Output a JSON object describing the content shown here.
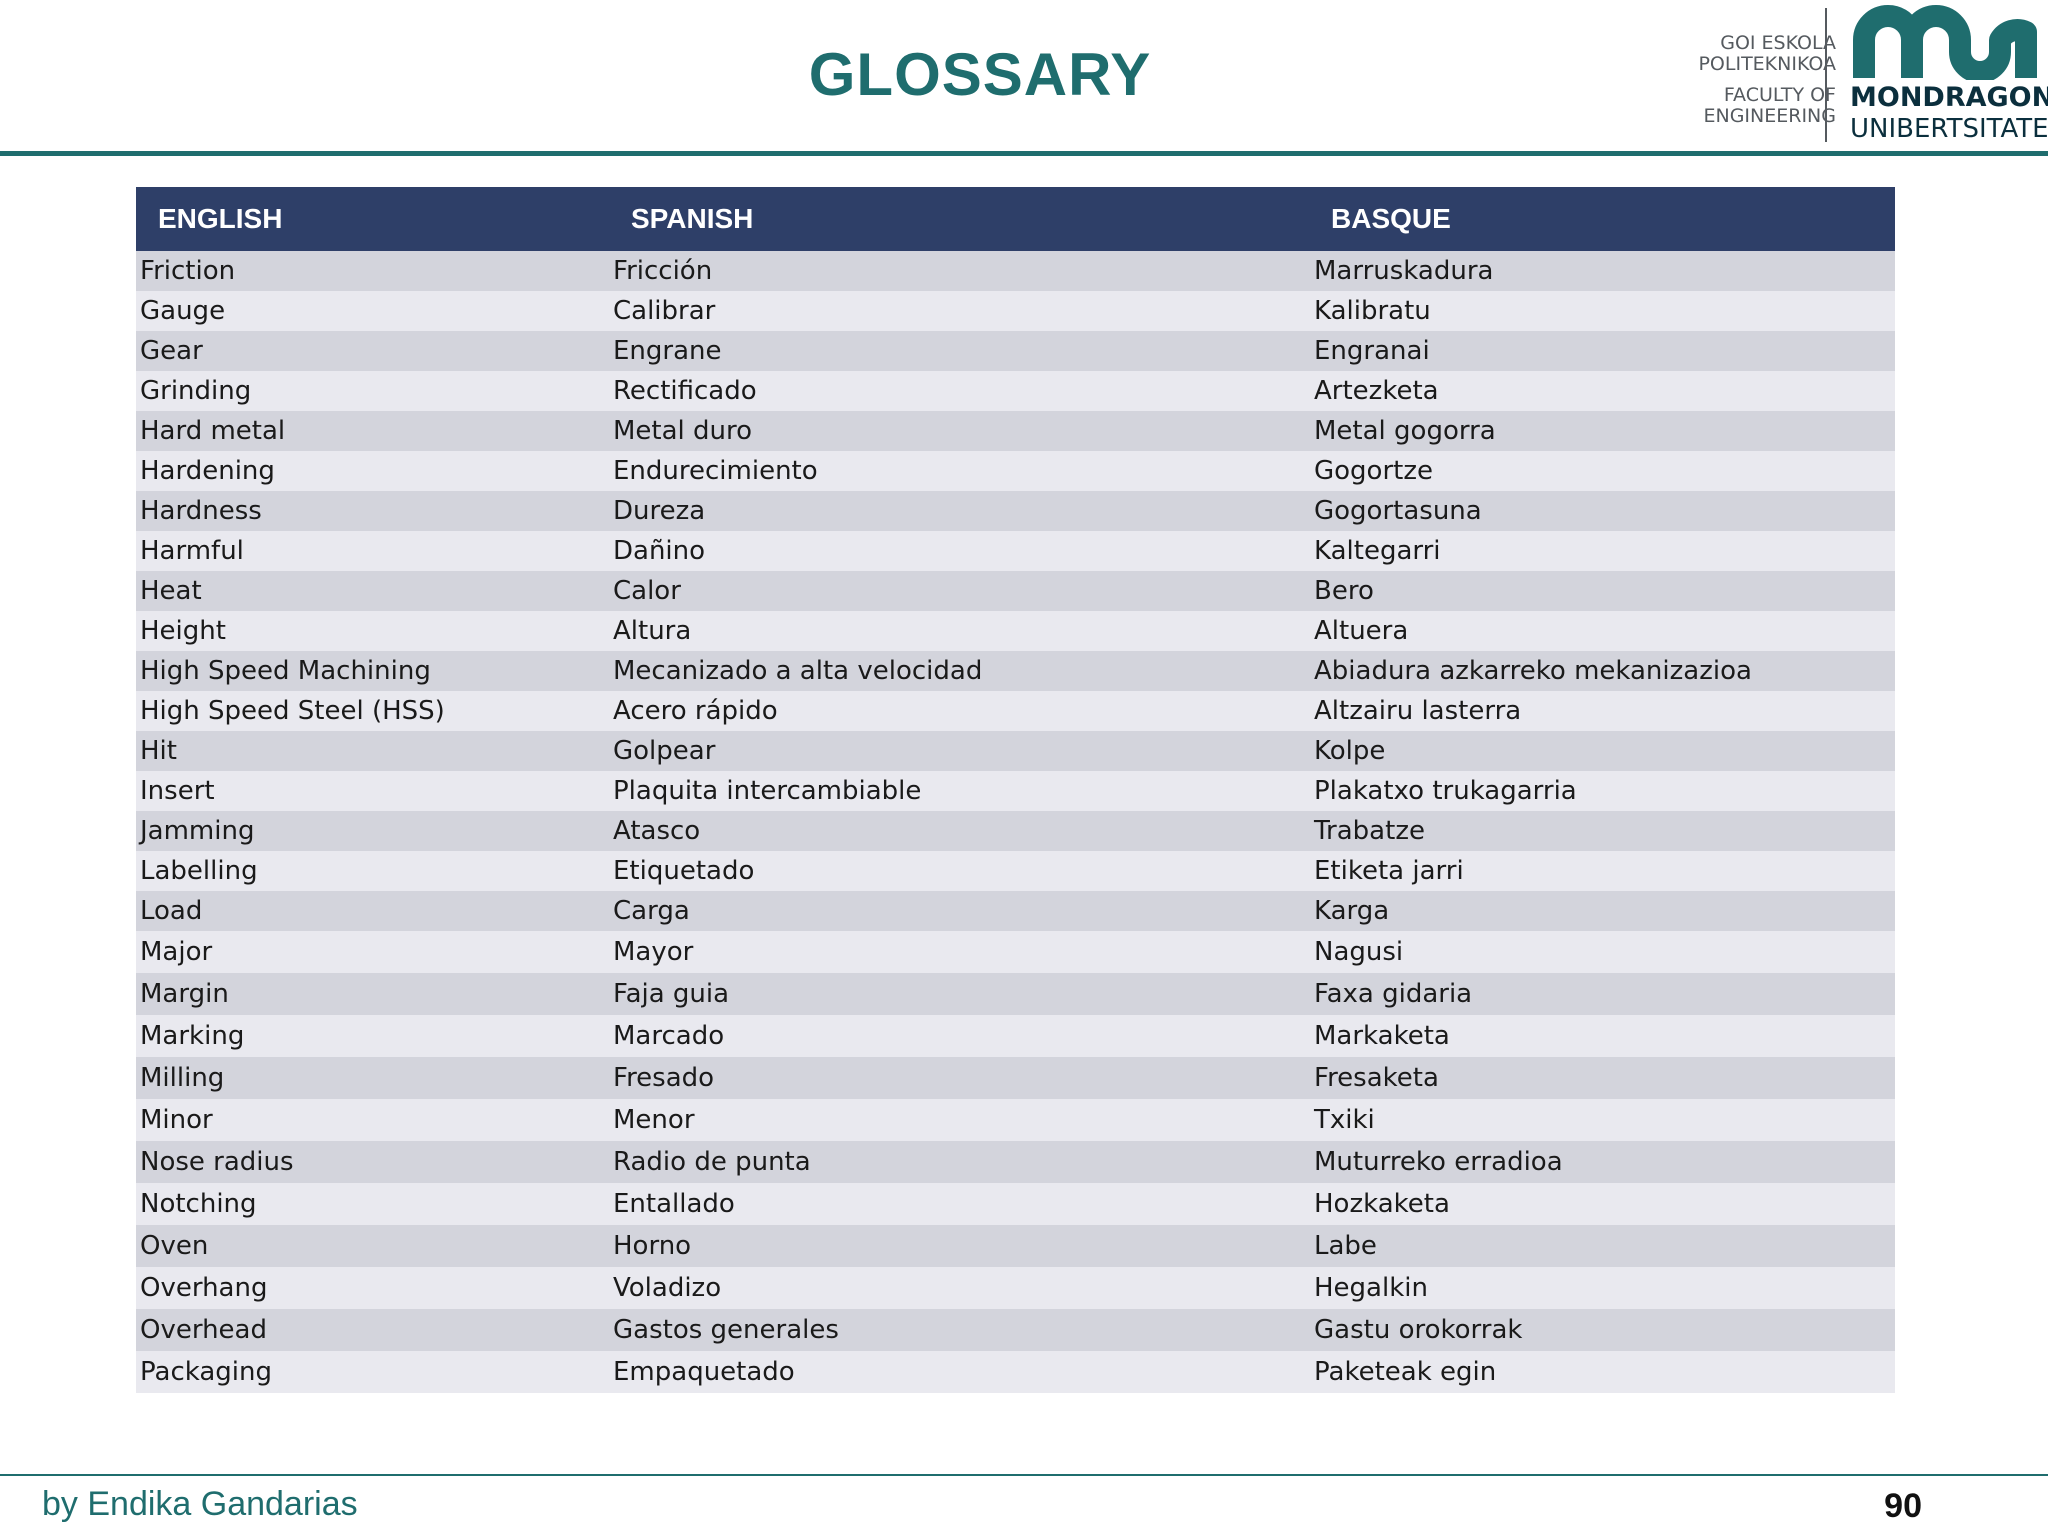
{
  "slide": {
    "title": "GLOSSARY"
  },
  "logo": {
    "line1": "GOI ESKOLA",
    "line2": "POLITEKNIKOA",
    "line3": "FACULTY OF",
    "line4": "ENGINEERING",
    "name1": "MONDRAGON",
    "name2": "UNIBERTSITATEA",
    "brand_color": "#1f6d6e"
  },
  "table": {
    "headers": [
      "ENGLISH",
      "SPANISH",
      "BASQUE"
    ],
    "rows": [
      [
        "Friction",
        "Fricción",
        "Marruskadura"
      ],
      [
        "Gauge",
        "Calibrar",
        "Kalibratu"
      ],
      [
        "Gear",
        "Engrane",
        "Engranai"
      ],
      [
        "Grinding",
        "Rectificado",
        "Artezketa"
      ],
      [
        "Hard metal",
        "Metal duro",
        "Metal gogorra"
      ],
      [
        "Hardening",
        "Endurecimiento",
        "Gogortze"
      ],
      [
        "Hardness",
        "Dureza",
        "Gogortasuna"
      ],
      [
        "Harmful",
        "Dañino",
        "Kaltegarri"
      ],
      [
        "Heat",
        "Calor",
        "Bero"
      ],
      [
        "Height",
        "Altura",
        "Altuera"
      ],
      [
        "High Speed Machining",
        "Mecanizado a alta velocidad",
        "Abiadura azkarreko mekanizazioa"
      ],
      [
        "High Speed Steel (HSS)",
        "Acero rápido",
        "Altzairu  lasterra"
      ],
      [
        "Hit",
        "Golpear",
        "Kolpe"
      ],
      [
        "Insert",
        "Plaquita intercambiable",
        "Plakatxo trukagarria"
      ],
      [
        "Jamming",
        "Atasco",
        "Trabatze"
      ],
      [
        "Labelling",
        "Etiquetado",
        "Etiketa jarri"
      ],
      [
        "Load",
        "Carga",
        "Karga"
      ],
      [
        "Major",
        "Mayor",
        "Nagusi"
      ],
      [
        "Margin",
        "Faja guia",
        "Faxa gidaria"
      ],
      [
        "Marking",
        "Marcado",
        "Markaketa"
      ],
      [
        "Milling",
        "Fresado",
        "Fresaketa"
      ],
      [
        "Minor",
        "Menor",
        "Txiki"
      ],
      [
        "Nose radius",
        "Radio de punta",
        "Muturreko erradioa"
      ],
      [
        "Notching",
        "Entallado",
        "Hozkaketa"
      ],
      [
        "Oven",
        "Horno",
        "Labe"
      ],
      [
        "Overhang",
        "Voladizo",
        "Hegalkin"
      ],
      [
        "Overhead",
        "Gastos generales",
        "Gastu orokorrak"
      ],
      [
        "Packaging",
        "Empaquetado",
        "Paketeak egin"
      ]
    ]
  },
  "footer": {
    "author": "by Endika Gandarias",
    "page_number": "90"
  }
}
